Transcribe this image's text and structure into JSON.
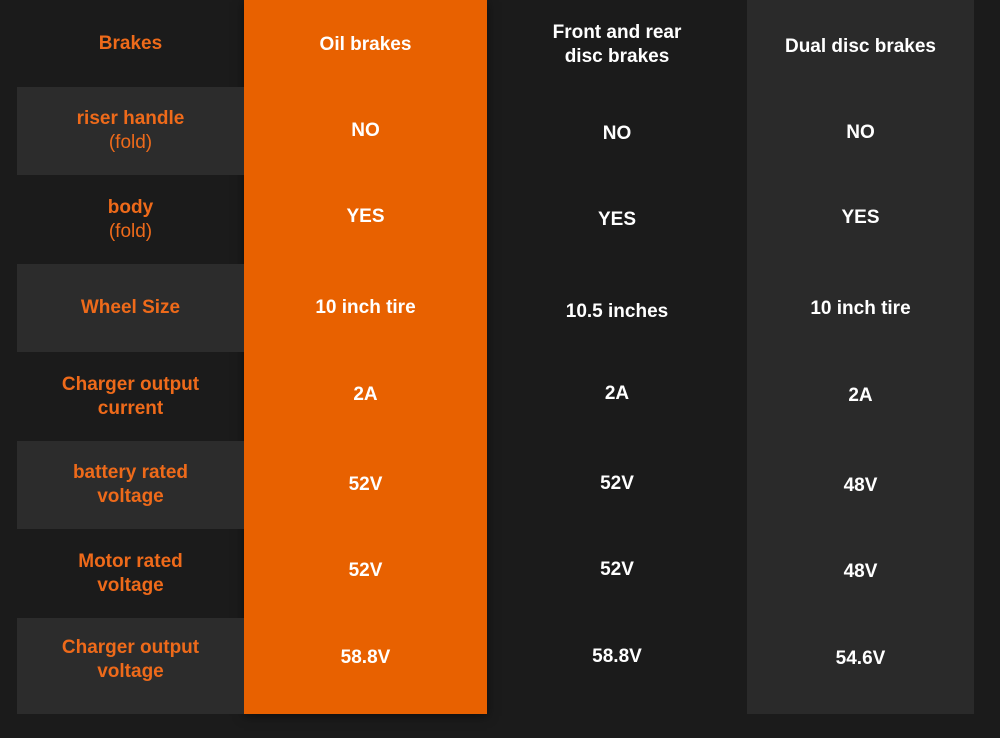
{
  "header": {
    "label": "Brakes",
    "columns": [
      "Oil brakes",
      "Front and rear disc brakes",
      "Dual disc brakes"
    ]
  },
  "rows": [
    {
      "label": "riser handle",
      "sublabel": "(fold)",
      "values": [
        "NO",
        "NO",
        "NO"
      ]
    },
    {
      "label": "body",
      "sublabel": "(fold)",
      "values": [
        "YES",
        "YES",
        "YES"
      ]
    },
    {
      "label": "Wheel Size",
      "sublabel": "",
      "values": [
        "10 inch tire",
        "10.5 inches",
        "10 inch tire"
      ]
    },
    {
      "label": "Charger output current",
      "sublabel": "",
      "values": [
        "2A",
        "2A",
        "2A"
      ]
    },
    {
      "label": "battery rated voltage",
      "sublabel": "",
      "values": [
        "52V",
        "52V",
        "48V"
      ]
    },
    {
      "label": "Motor rated voltage",
      "sublabel": "",
      "values": [
        "52V",
        "52V",
        "48V"
      ]
    },
    {
      "label": "Charger output voltage",
      "sublabel": "",
      "values": [
        "58.8V",
        "58.8V",
        "54.6V"
      ]
    }
  ],
  "colors": {
    "background": "#1b1b1b",
    "label_band": "#2c2c2c",
    "highlight_column": "#e86100",
    "gray_column": "#2a2a2a",
    "label_text": "#ee6a1a",
    "value_text": "#ffffff"
  }
}
